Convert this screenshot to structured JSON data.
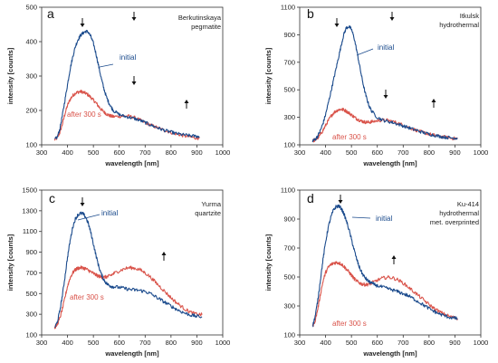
{
  "chart_data": [
    {
      "type": "line",
      "panel_letter": "a",
      "sample_label": [
        "Berkutinskaya",
        "pegmatite"
      ],
      "xlabel": "wavelength [nm]",
      "ylabel": "intensity [counts]",
      "xlim": [
        300,
        1000
      ],
      "ylim": [
        100,
        500
      ],
      "xticks": [
        "300",
        "400",
        "500",
        "600",
        "700",
        "800",
        "900",
        "1000"
      ],
      "yticks": [
        "100",
        "200",
        "300",
        "400",
        "500"
      ],
      "series": [
        {
          "name": "initial",
          "color": "#1a4a8c",
          "x": [
            350,
            360,
            370,
            380,
            390,
            400,
            410,
            420,
            430,
            440,
            450,
            460,
            470,
            480,
            490,
            500,
            510,
            520,
            530,
            540,
            550,
            560,
            570,
            580,
            600,
            620,
            640,
            660,
            680,
            700,
            720,
            740,
            760,
            780,
            800,
            820,
            840,
            860,
            880,
            900,
            910
          ],
          "y": [
            115,
            122,
            145,
            185,
            230,
            275,
            320,
            355,
            385,
            405,
            418,
            425,
            430,
            428,
            415,
            395,
            365,
            330,
            295,
            265,
            240,
            222,
            208,
            198,
            188,
            183,
            180,
            176,
            171,
            165,
            158,
            152,
            146,
            141,
            137,
            133,
            130,
            128,
            126,
            125,
            124
          ]
        },
        {
          "name": "after 300 s",
          "color": "#d9534a",
          "x": [
            350,
            360,
            370,
            380,
            390,
            400,
            410,
            420,
            430,
            440,
            450,
            460,
            470,
            480,
            490,
            500,
            510,
            520,
            530,
            540,
            550,
            560,
            570,
            580,
            600,
            620,
            640,
            660,
            680,
            700,
            720,
            740,
            760,
            780,
            800,
            820,
            840,
            860,
            880,
            900,
            910
          ],
          "y": [
            115,
            120,
            135,
            160,
            190,
            215,
            232,
            243,
            250,
            253,
            255,
            253,
            250,
            245,
            238,
            230,
            222,
            212,
            203,
            196,
            190,
            186,
            183,
            182,
            183,
            184,
            183,
            179,
            172,
            165,
            158,
            152,
            146,
            141,
            136,
            132,
            128,
            125,
            122,
            120,
            119
          ]
        }
      ],
      "annotations": [
        "initial",
        "after 300 s"
      ]
    },
    {
      "type": "line",
      "panel_letter": "b",
      "sample_label": [
        "Itkulsk",
        "hydrothermal"
      ],
      "xlabel": "wavelength [nm]",
      "ylabel": "intensity [counts]",
      "xlim": [
        300,
        1000
      ],
      "ylim": [
        100,
        1100
      ],
      "xticks": [
        "300",
        "400",
        "500",
        "600",
        "700",
        "800",
        "900",
        "1000"
      ],
      "yticks": [
        "100",
        "300",
        "500",
        "700",
        "900",
        "1100"
      ],
      "series": [
        {
          "name": "initial",
          "color": "#1a4a8c",
          "x": [
            350,
            360,
            370,
            380,
            390,
            400,
            410,
            420,
            430,
            440,
            450,
            460,
            470,
            480,
            490,
            500,
            510,
            520,
            530,
            540,
            550,
            560,
            570,
            580,
            600,
            620,
            640,
            660,
            680,
            700,
            720,
            740,
            760,
            780,
            800,
            820,
            840,
            860,
            880,
            900,
            910
          ],
          "y": [
            130,
            140,
            165,
            205,
            255,
            320,
            400,
            480,
            565,
            650,
            735,
            820,
            900,
            950,
            960,
            940,
            880,
            790,
            690,
            590,
            500,
            430,
            375,
            340,
            300,
            280,
            270,
            262,
            250,
            238,
            225,
            212,
            200,
            188,
            178,
            170,
            162,
            156,
            152,
            150,
            148
          ]
        },
        {
          "name": "after 300 s",
          "color": "#d9534a",
          "x": [
            350,
            360,
            370,
            380,
            390,
            400,
            410,
            420,
            430,
            440,
            450,
            460,
            470,
            480,
            490,
            500,
            510,
            520,
            530,
            540,
            550,
            560,
            570,
            580,
            600,
            620,
            640,
            660,
            680,
            700,
            720,
            740,
            760,
            780,
            800,
            820,
            840,
            860,
            880,
            900,
            910
          ],
          "y": [
            130,
            135,
            150,
            175,
            205,
            240,
            275,
            305,
            330,
            345,
            355,
            358,
            355,
            345,
            332,
            318,
            303,
            290,
            280,
            272,
            266,
            264,
            265,
            268,
            275,
            280,
            278,
            270,
            258,
            243,
            228,
            213,
            200,
            188,
            178,
            170,
            162,
            156,
            150,
            146,
            145
          ]
        }
      ],
      "annotations": [
        "initial",
        "after 300 s"
      ]
    },
    {
      "type": "line",
      "panel_letter": "c",
      "sample_label": [
        "Yurma",
        "quartzite"
      ],
      "xlabel": "wavelength [nm]",
      "ylabel": "intensity [counts]",
      "xlim": [
        300,
        1000
      ],
      "ylim": [
        100,
        1500
      ],
      "xticks": [
        "300",
        "400",
        "500",
        "600",
        "700",
        "800",
        "900",
        "1000"
      ],
      "yticks": [
        "100",
        "300",
        "500",
        "700",
        "900",
        "1100",
        "1300",
        "1500"
      ],
      "series": [
        {
          "name": "initial",
          "color": "#1a4a8c",
          "x": [
            350,
            360,
            370,
            380,
            390,
            400,
            410,
            420,
            430,
            440,
            450,
            460,
            470,
            480,
            490,
            500,
            510,
            520,
            530,
            540,
            550,
            560,
            570,
            580,
            600,
            620,
            640,
            660,
            680,
            700,
            720,
            740,
            760,
            780,
            800,
            820,
            840,
            860,
            880,
            900,
            920
          ],
          "y": [
            170,
            220,
            330,
            480,
            660,
            850,
            1010,
            1140,
            1220,
            1260,
            1275,
            1270,
            1240,
            1180,
            1090,
            980,
            870,
            770,
            690,
            635,
            600,
            580,
            570,
            565,
            560,
            550,
            540,
            535,
            530,
            520,
            500,
            470,
            440,
            410,
            380,
            350,
            325,
            305,
            290,
            280,
            275
          ]
        },
        {
          "name": "after 300 s",
          "color": "#d9534a",
          "x": [
            350,
            360,
            370,
            380,
            390,
            400,
            410,
            420,
            430,
            440,
            450,
            460,
            470,
            480,
            490,
            500,
            510,
            520,
            530,
            540,
            550,
            560,
            570,
            580,
            600,
            620,
            640,
            660,
            680,
            700,
            720,
            740,
            760,
            780,
            800,
            820,
            840,
            860,
            880,
            900,
            920
          ],
          "y": [
            170,
            200,
            260,
            350,
            460,
            570,
            650,
            700,
            730,
            745,
            750,
            748,
            740,
            725,
            710,
            695,
            680,
            668,
            660,
            658,
            660,
            668,
            680,
            695,
            720,
            740,
            750,
            745,
            730,
            700,
            660,
            610,
            560,
            510,
            460,
            415,
            375,
            340,
            315,
            300,
            295
          ]
        }
      ],
      "annotations": [
        "initial",
        "after 300 s"
      ]
    },
    {
      "type": "line",
      "panel_letter": "d",
      "sample_label": [
        "Ku-414",
        "hydrothermal",
        "met. overprinted"
      ],
      "xlabel": "wavelength [nm]",
      "ylabel": "intensity [counts]",
      "xlim": [
        300,
        1000
      ],
      "ylim": [
        100,
        1100
      ],
      "xticks": [
        "300",
        "400",
        "500",
        "600",
        "700",
        "800",
        "900",
        "1000"
      ],
      "yticks": [
        "100",
        "300",
        "500",
        "700",
        "900",
        "1100"
      ],
      "series": [
        {
          "name": "initial",
          "color": "#1a4a8c",
          "x": [
            350,
            360,
            370,
            380,
            390,
            400,
            410,
            420,
            430,
            440,
            450,
            460,
            470,
            480,
            490,
            500,
            510,
            520,
            530,
            540,
            550,
            560,
            570,
            580,
            600,
            620,
            640,
            660,
            680,
            700,
            720,
            740,
            760,
            780,
            800,
            820,
            840,
            860,
            880,
            900,
            910
          ],
          "y": [
            160,
            230,
            340,
            480,
            620,
            740,
            840,
            910,
            960,
            985,
            990,
            975,
            940,
            890,
            830,
            760,
            690,
            625,
            570,
            530,
            500,
            480,
            465,
            455,
            440,
            430,
            420,
            410,
            398,
            385,
            370,
            350,
            328,
            305,
            282,
            262,
            245,
            232,
            222,
            215,
            213
          ]
        },
        {
          "name": "after 300 s",
          "color": "#d9534a",
          "x": [
            350,
            360,
            370,
            380,
            390,
            400,
            410,
            420,
            430,
            440,
            450,
            460,
            470,
            480,
            490,
            500,
            510,
            520,
            530,
            540,
            550,
            560,
            570,
            580,
            600,
            620,
            640,
            660,
            680,
            700,
            720,
            740,
            760,
            780,
            800,
            820,
            840,
            860,
            880,
            900,
            910
          ],
          "y": [
            160,
            200,
            280,
            380,
            470,
            530,
            565,
            585,
            595,
            600,
            598,
            590,
            575,
            555,
            535,
            512,
            490,
            472,
            460,
            452,
            448,
            448,
            452,
            460,
            478,
            492,
            498,
            494,
            480,
            458,
            430,
            400,
            370,
            340,
            310,
            283,
            260,
            242,
            228,
            218,
            215
          ]
        }
      ],
      "annotations": [
        "initial",
        "after 300 s"
      ]
    }
  ]
}
